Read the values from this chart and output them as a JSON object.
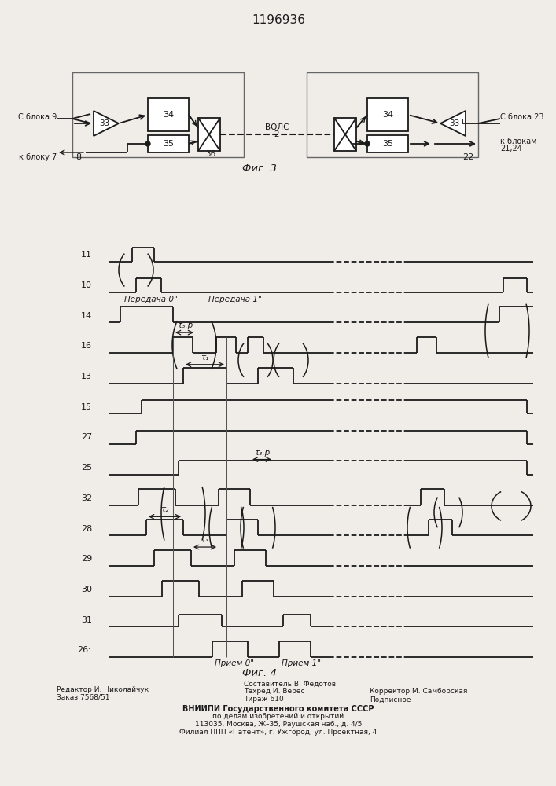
{
  "title": "1196936",
  "fig3_caption": "Фиг. 3",
  "fig4_caption": "Фиг. 4",
  "bg_color": "#f0ede8",
  "line_color": "#1a1a1a",
  "editor_text": "Редактор И. Николайчук",
  "order_text": "Заказ 7568/51",
  "composer_text": "Составитель В. Федотов",
  "tech_text": "Техред И. Верес",
  "corrector_text": "Корректор М. Самборская",
  "tirazh_text": "Тираж 610",
  "podp_text": "Подписное",
  "vniip1": "ВНИИПИ Государственного комитета СССР",
  "vniip2": "по делам изобретений и открытий",
  "vniip3": "113035, Москва, Ж–35, Раушская наб., д. 4/5",
  "vniip4": "Филиал ППП «Патент», г. Ужгород, ул. Проектная, 4",
  "sig_labels": [
    "11",
    "10",
    "14",
    "16",
    "13",
    "15",
    "27",
    "25",
    "32",
    "28",
    "29",
    "30",
    "31",
    "26₁"
  ],
  "transmit0": "Передача 0\"",
  "transmit1": "Передача 1\"",
  "receive0": "Прием 0\"",
  "receive1": "Прием 1\"",
  "vols_label": "ВОЛС",
  "vols_num": "2",
  "blok8": "8",
  "blok22": "22",
  "blok36": "36",
  "from9": "С блока 9",
  "to7": "к блоку 7",
  "from23": "С блока 23",
  "to2124": "к блокам\n21,24"
}
